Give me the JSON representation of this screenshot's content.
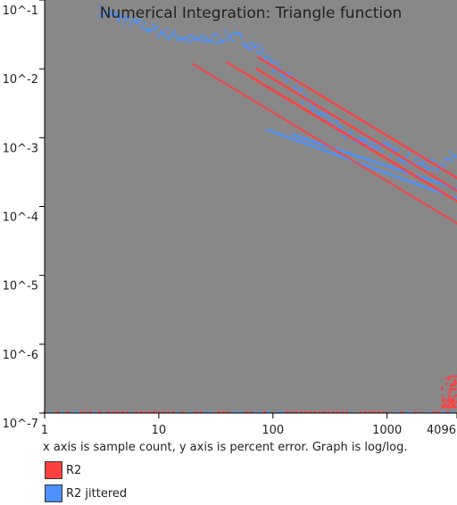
{
  "chart_data": {
    "type": "scatter",
    "title": "Numerical Integration: Triangle function",
    "xlabel": "",
    "ylabel": "",
    "x_scale": "log",
    "y_scale": "log",
    "xlim": [
      1,
      4096
    ],
    "ylim": [
      1e-07,
      0.1
    ],
    "x_ticks": [
      {
        "value": 1,
        "label": "1"
      },
      {
        "value": 10,
        "label": "10"
      },
      {
        "value": 100,
        "label": "100"
      },
      {
        "value": 1000,
        "label": "1000"
      },
      {
        "value": 4096,
        "label": "4096"
      }
    ],
    "y_ticks": [
      {
        "value": 0.1,
        "label": "10^-1"
      },
      {
        "value": 0.01,
        "label": "10^-2"
      },
      {
        "value": 0.001,
        "label": "10^-3"
      },
      {
        "value": 0.0001,
        "label": "10^-4"
      },
      {
        "value": 1e-05,
        "label": "10^-5"
      },
      {
        "value": 1e-06,
        "label": "10^-6"
      },
      {
        "value": 1e-07,
        "label": "10^-7"
      }
    ],
    "background": "#888888",
    "grid": false,
    "legend_position": "bottom-left",
    "series": [
      {
        "name": "R2",
        "color": "#ff4040",
        "lines": [
          {
            "x": [
              20,
              4096
            ],
            "y": [
              0.0117,
              5.7e-05
            ]
          },
          {
            "x": [
              40,
              4096
            ],
            "y": [
              0.0123,
              0.00012
            ]
          },
          {
            "x": [
              65,
              4096
            ],
            "y": [
              0.0075,
              0.00012
            ]
          },
          {
            "x": [
              72,
              4096
            ],
            "y": [
              0.01,
              0.00017
            ]
          },
          {
            "x": [
              75,
              4096
            ],
            "y": [
              0.0145,
              0.00026
            ]
          }
        ],
        "floor": {
          "x": [
            1,
            4096
          ],
          "y": 1e-07
        },
        "tail_noise": {
          "x_range": [
            3000,
            4096
          ],
          "y_range": [
            1.2e-07,
            5e-07
          ]
        }
      },
      {
        "name": "R2 jittered",
        "color": "#4d90ff",
        "lines": [
          {
            "x": [
              90,
              4096
            ],
            "y": [
              0.0013,
              0.00013
            ]
          },
          {
            "x": [
              150,
              4096
            ],
            "y": [
              0.0011,
              0.00018
            ]
          }
        ],
        "curve": {
          "x": [
            3,
            10,
            20,
            30,
            40,
            50,
            60,
            80,
            100,
            150,
            200,
            300,
            400,
            600,
            1000,
            2000,
            3000,
            4096
          ],
          "y": [
            0.07,
            0.035,
            0.026,
            0.027,
            0.03,
            0.028,
            0.024,
            0.018,
            0.011,
            0.007,
            0.003,
            0.002,
            0.0012,
            0.0009,
            0.0007,
            0.0004,
            0.0004,
            0.00065
          ]
        },
        "floor": {
          "x": [
            1,
            4096
          ],
          "y": 1e-07
        }
      }
    ]
  },
  "caption": "x axis is sample count, y axis is percent error. Graph is log/log.",
  "legend": [
    {
      "label": "R2",
      "color": "#ff4040"
    },
    {
      "label": "R2 jittered",
      "color": "#4d90ff"
    }
  ]
}
